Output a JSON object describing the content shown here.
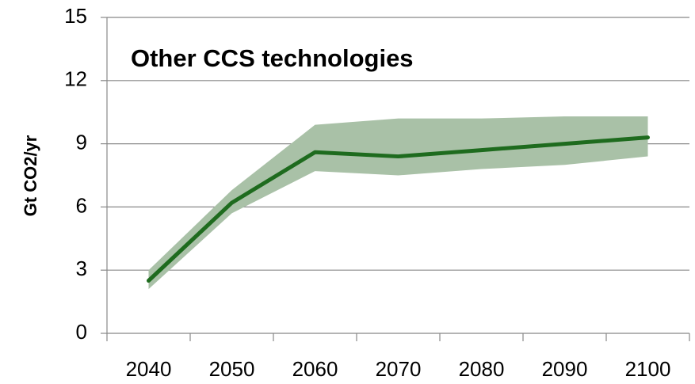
{
  "chart_data": {
    "type": "line",
    "title": "Other CCS technologies",
    "y_label": "Gt CO2/yr",
    "categories": [
      "2040",
      "2050",
      "2060",
      "2070",
      "2080",
      "2090",
      "2100"
    ],
    "values": [
      2.5,
      6.2,
      8.6,
      8.4,
      8.7,
      9.0,
      9.3
    ],
    "upper": [
      3.0,
      6.8,
      9.9,
      10.2,
      10.2,
      10.3,
      10.3
    ],
    "lower": [
      2.1,
      5.7,
      7.7,
      7.5,
      7.8,
      8.0,
      8.4
    ],
    "color": "#1e6b1e",
    "band_color": "#a9c1a7",
    "ylim": [
      0,
      15
    ],
    "yticks": [
      0,
      3,
      6,
      9,
      12,
      15
    ],
    "grid": true
  }
}
